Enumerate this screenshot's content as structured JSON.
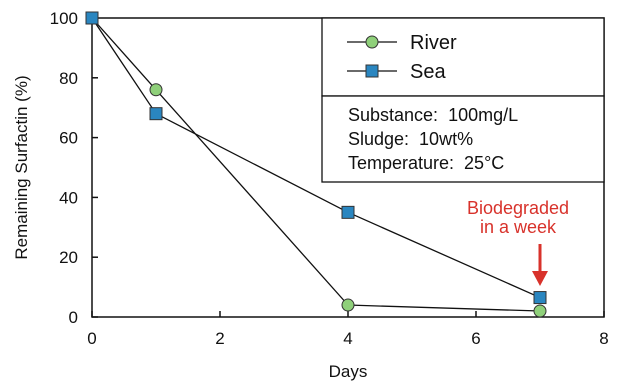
{
  "chart_data": {
    "type": "line",
    "xlabel": "Days",
    "ylabel": "Remaining Surfactin (%)",
    "xlim": [
      0,
      8
    ],
    "ylim": [
      0,
      100
    ],
    "x_ticks": [
      "0",
      "2",
      "4",
      "6",
      "8"
    ],
    "y_ticks": [
      "0",
      "20",
      "40",
      "60",
      "80",
      "100"
    ],
    "grid": false,
    "legend_position": "top-right",
    "series": [
      {
        "name": "River",
        "marker": "circle",
        "color": "#8fd07a",
        "x": [
          0,
          1,
          4,
          7
        ],
        "y": [
          100,
          76,
          4,
          2
        ]
      },
      {
        "name": "Sea",
        "marker": "square",
        "color": "#2a86c0",
        "x": [
          0,
          1,
          4,
          7
        ],
        "y": [
          100,
          68,
          35,
          6.5
        ]
      }
    ],
    "conditions": [
      "Substance:  100mg/L",
      "Sludge:  10wt%",
      "Temperature:  25°C"
    ],
    "annotation": {
      "lines": [
        "Biodegraded",
        "in a week"
      ],
      "color": "#d8322b",
      "x": 7
    }
  }
}
